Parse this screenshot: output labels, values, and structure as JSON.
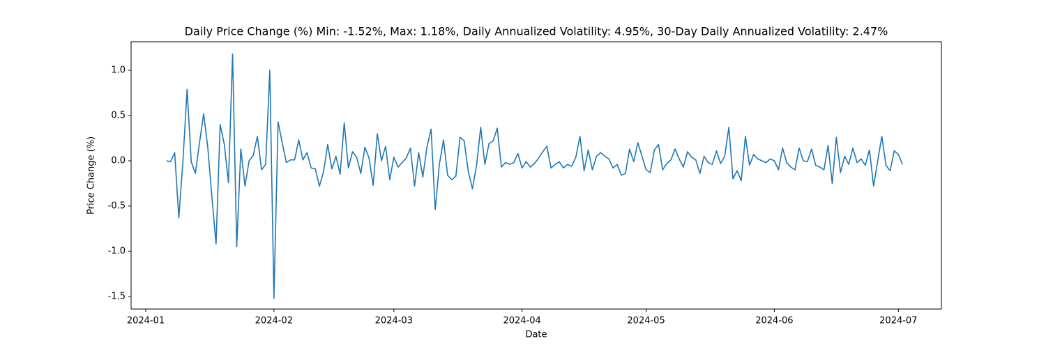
{
  "chart_data": {
    "type": "line",
    "title": "Daily Price Change (%) Min: -1.52%, Max: 1.18%, Daily Annualized Volatility: 4.95%, 30-Day Daily Annualized Volatility: 2.47%",
    "x_label": "Date",
    "y_label": "Price Change (%)",
    "series": [
      {
        "name": "Daily Price Change",
        "color": "#1f77b4",
        "values": [
          0.0,
          -0.01,
          0.09,
          -0.63,
          0.0,
          0.79,
          -0.01,
          -0.14,
          0.2,
          0.52,
          0.15,
          -0.4,
          -0.92,
          0.4,
          0.18,
          -0.24,
          1.18,
          -0.95,
          0.13,
          -0.28,
          0.0,
          0.06,
          0.27,
          -0.1,
          -0.04,
          1.0,
          -1.52,
          0.43,
          0.2,
          -0.02,
          0.01,
          0.01,
          0.23,
          0.01,
          0.09,
          -0.08,
          -0.09,
          -0.28,
          -0.12,
          0.18,
          -0.09,
          0.05,
          -0.15,
          0.42,
          -0.08,
          0.1,
          0.04,
          -0.14,
          0.15,
          0.03,
          -0.27,
          0.3,
          0.0,
          0.16,
          -0.21,
          0.04,
          -0.07,
          -0.02,
          0.03,
          0.14,
          -0.28,
          0.09,
          -0.18,
          0.15,
          0.35,
          -0.54,
          -0.04,
          0.23,
          -0.16,
          -0.21,
          -0.17,
          0.26,
          0.22,
          -0.12,
          -0.31,
          -0.05,
          0.37,
          -0.04,
          0.19,
          0.22,
          0.36,
          -0.07,
          -0.02,
          -0.04,
          -0.02,
          0.08,
          -0.08,
          -0.01,
          -0.07,
          -0.03,
          0.03,
          0.1,
          0.16,
          -0.08,
          -0.04,
          -0.01,
          -0.08,
          -0.04,
          -0.06,
          0.04,
          0.27,
          -0.11,
          0.12,
          -0.1,
          0.05,
          0.09,
          0.05,
          0.02,
          -0.08,
          -0.04,
          -0.16,
          -0.14,
          0.13,
          -0.01,
          0.2,
          0.05,
          -0.1,
          -0.13,
          0.12,
          0.18,
          -0.1,
          -0.03,
          0.01,
          0.13,
          0.02,
          -0.07,
          0.1,
          0.04,
          0.01,
          -0.14,
          0.05,
          -0.02,
          -0.04,
          0.11,
          -0.03,
          0.05,
          0.37,
          -0.2,
          -0.11,
          -0.22,
          0.27,
          -0.05,
          0.07,
          0.02,
          0.0,
          -0.02,
          0.02,
          0.0,
          -0.1,
          0.14,
          -0.02,
          -0.07,
          -0.1,
          0.14,
          0.0,
          -0.01,
          0.13,
          -0.05,
          -0.07,
          -0.1,
          0.17,
          -0.25,
          0.26,
          -0.13,
          0.05,
          -0.04,
          0.14,
          -0.02,
          0.02,
          -0.05,
          0.12,
          -0.28,
          0.0,
          0.27,
          -0.05,
          -0.11,
          0.11,
          0.07,
          -0.04
        ]
      }
    ],
    "xlim": [
      -8.54,
      187.4
    ],
    "xticks": [
      {
        "value": -5,
        "label": "2024-01"
      },
      {
        "value": 26,
        "label": "2024-02"
      },
      {
        "value": 55,
        "label": "2024-03"
      },
      {
        "value": 86,
        "label": "2024-04"
      },
      {
        "value": 116,
        "label": "2024-05"
      },
      {
        "value": 147,
        "label": "2024-06"
      },
      {
        "value": 177,
        "label": "2024-07"
      }
    ],
    "ylim": [
      -1.638,
      1.315
    ],
    "yticks": [
      -1.5,
      {
        "value": -1,
        "label": "-1.0"
      },
      -0.5,
      {
        "value": 0,
        "label": "0.0"
      },
      0.5,
      {
        "value": 1,
        "label": "1.0"
      }
    ],
    "grid": false
  }
}
